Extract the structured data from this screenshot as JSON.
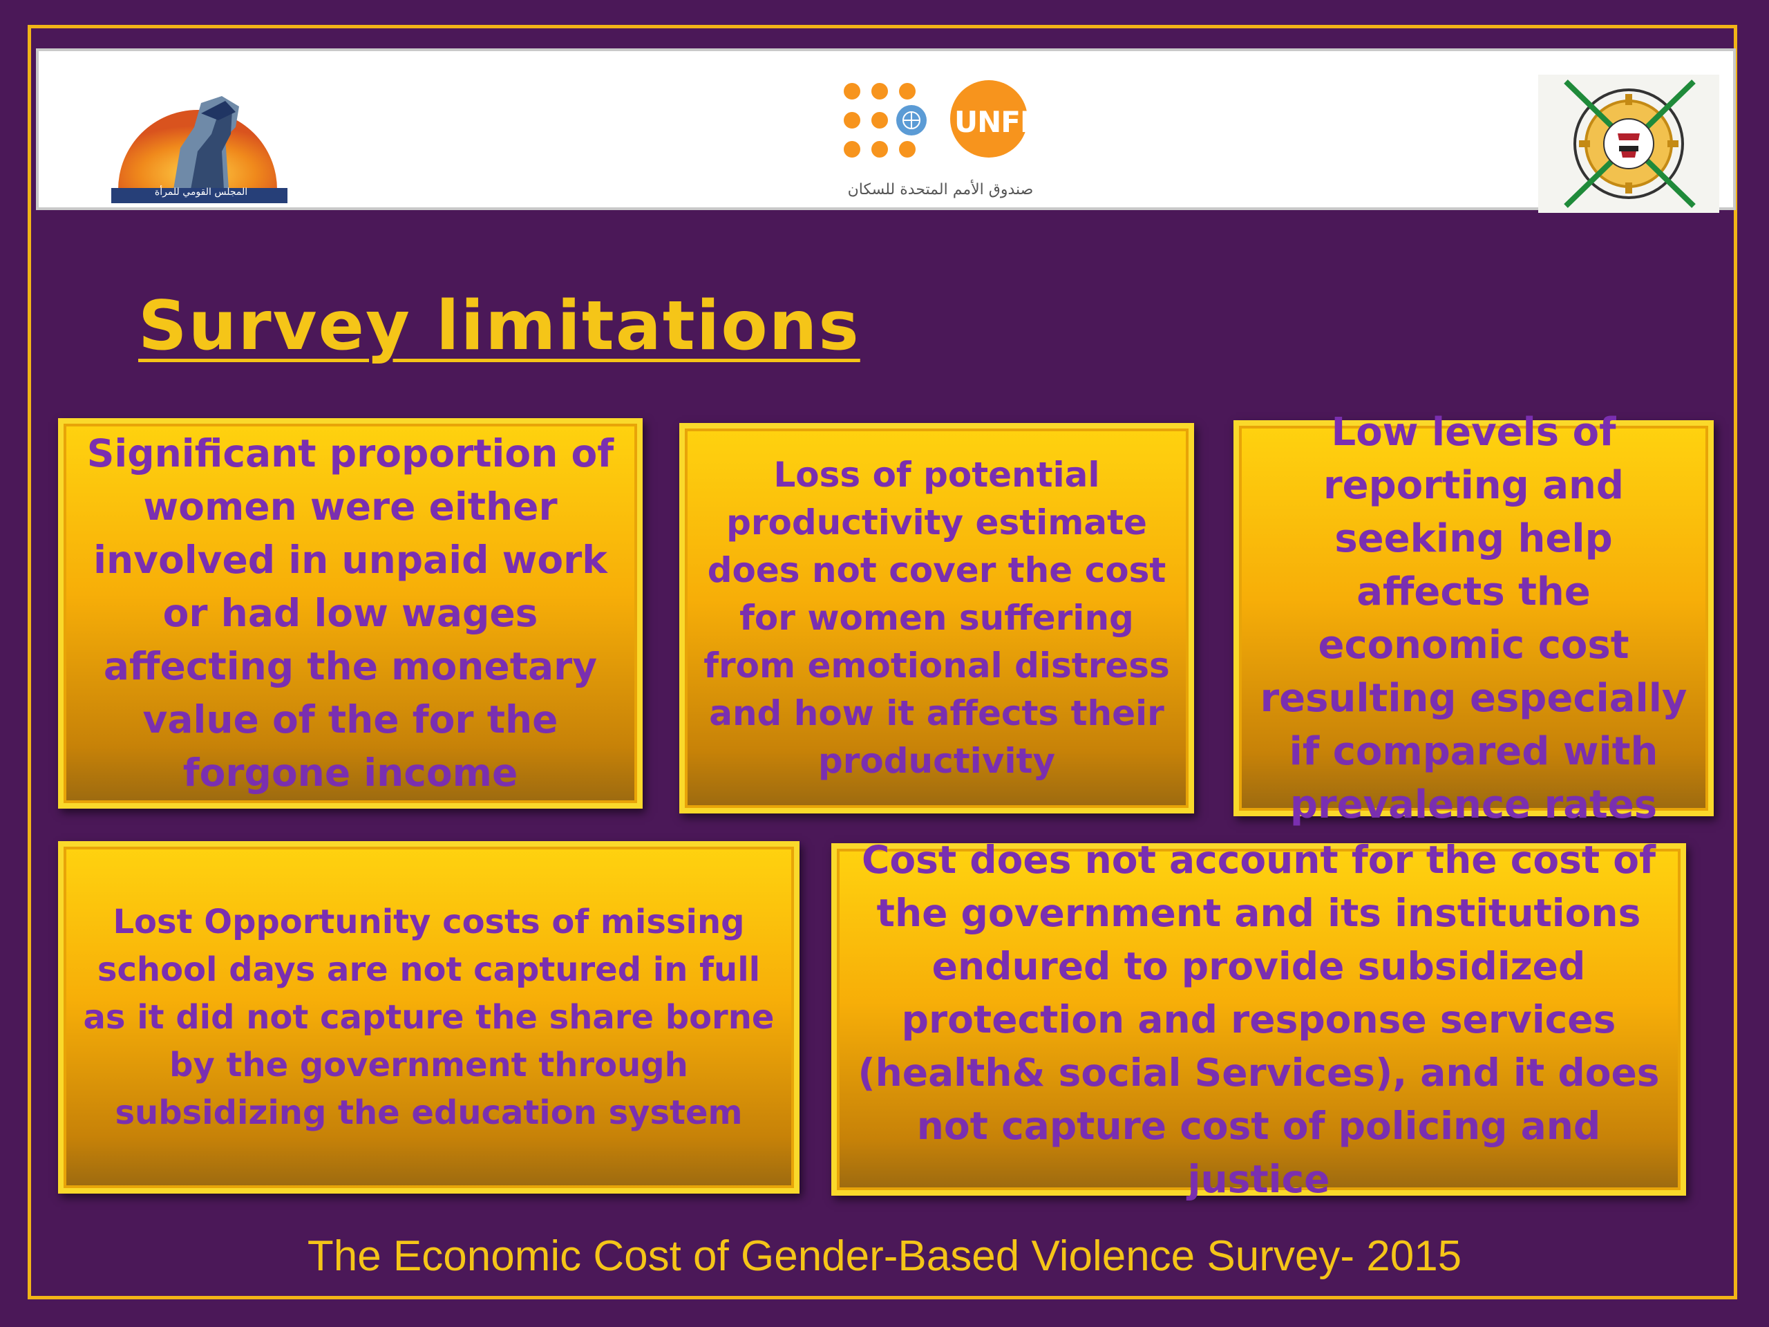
{
  "header": {
    "logos": [
      {
        "name": "national-council-for-women-logo",
        "caption": "المجلس القومي للمرأة"
      },
      {
        "name": "unfpa-logo",
        "text": "UNFPA",
        "caption": "صندوق الأمم المتحدة للسكان"
      },
      {
        "name": "government-seal-logo"
      }
    ]
  },
  "title": "Survey limitations",
  "cards": [
    {
      "text": "Significant proportion of women were either involved in unpaid work or had low wages affecting the monetary value of the for the forgone income"
    },
    {
      "text": "Loss of potential productivity estimate does not cover the cost for women suffering from emotional distress and how it affects their productivity"
    },
    {
      "text": "Low levels of reporting and seeking help affects the economic cost resulting especially if compared with prevalence rates"
    },
    {
      "text": "Lost Opportunity costs of missing school days are not captured in full as it did not capture the share borne by the government through subsidizing the education system"
    },
    {
      "text": "Cost does not account for the cost of the government and its institutions endured to provide subsidized protection and response services (health& social Services), and it does not capture cost of policing and justice"
    }
  ],
  "footer": "The Economic Cost of Gender-Based Violence Survey- 2015",
  "colors": {
    "background": "#4b1858",
    "accent_gold": "#f5c518",
    "card_text_purple": "#7a2fb0",
    "unfpa_orange": "#f7941d",
    "un_blue": "#5b9bd5"
  }
}
